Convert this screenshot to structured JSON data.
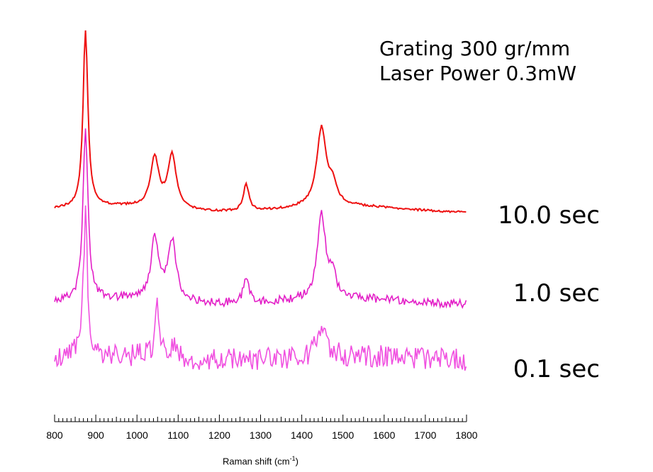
{
  "chart_data": {
    "type": "line",
    "annotations": [
      "Grating 300 gr/mm",
      "Laser Power 0.3mW"
    ],
    "xlabel": {
      "prefix": "Raman shift (cm",
      "sup": "-1",
      "suffix": ")"
    },
    "xlim": [
      800,
      1800
    ],
    "x_ticks": [
      "800",
      "900",
      "1000",
      "1100",
      "1200",
      "1300",
      "1400",
      "1500",
      "1600",
      "1700",
      "1800"
    ],
    "grid": false,
    "y_axis": "hidden, traces vertically offset",
    "series": [
      {
        "name": "10.0 sec",
        "color": "#ee1111",
        "baseline": 295,
        "amplitude": 250,
        "noise": 1.5,
        "peaks": [
          {
            "center": 875,
            "height": 1.0,
            "width": 7
          },
          {
            "center": 1043,
            "height": 0.28,
            "width": 12
          },
          {
            "center": 1085,
            "height": 0.3,
            "width": 12
          },
          {
            "center": 1265,
            "height": 0.15,
            "width": 8
          },
          {
            "center": 1448,
            "height": 0.44,
            "width": 14
          },
          {
            "center": 1475,
            "height": 0.1,
            "width": 12
          }
        ]
      },
      {
        "name": "1.0 sec",
        "color": "#e31fc7",
        "baseline": 425,
        "amplitude": 245,
        "noise": 6,
        "peaks": [
          {
            "center": 875,
            "height": 1.0,
            "width": 7
          },
          {
            "center": 1043,
            "height": 0.35,
            "width": 11
          },
          {
            "center": 1085,
            "height": 0.34,
            "width": 12
          },
          {
            "center": 1265,
            "height": 0.16,
            "width": 8
          },
          {
            "center": 1448,
            "height": 0.49,
            "width": 12
          },
          {
            "center": 1475,
            "height": 0.12,
            "width": 10
          }
        ]
      },
      {
        "name": "0.1 sec",
        "color": "#f050e0",
        "baseline": 505,
        "amplitude": 200,
        "noise": 16,
        "peaks": [
          {
            "center": 875,
            "height": 1.0,
            "width": 6
          },
          {
            "center": 1048,
            "height": 0.35,
            "width": 6
          },
          {
            "center": 1085,
            "height": 0.08,
            "width": 12
          },
          {
            "center": 1448,
            "height": 0.22,
            "width": 12
          }
        ]
      }
    ]
  }
}
